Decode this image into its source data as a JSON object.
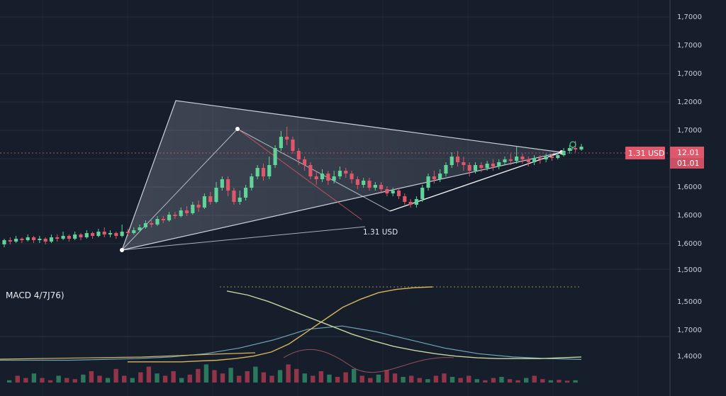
{
  "chart_data": {
    "type": "candlestick",
    "grid": true,
    "colors": {
      "background": "#161d2b",
      "up": "#5fd39a",
      "down": "#e0566a",
      "pattern_fill": "#cfd5df",
      "pattern_line": "#e9edf3",
      "price_line": "#e0566a",
      "macd_line": "#d8b45c",
      "signal_line": "#6fa6b8",
      "third_line": "#c9d4a0",
      "accent_green": "#3fcf8e"
    },
    "price_axis": {
      "labels": [
        "1,7000",
        "1,7000",
        "1,7000",
        "1,2000",
        "1,7000",
        "1,6000",
        "1,6000",
        "1,6000",
        "1,5000"
      ],
      "tag_left": "1.31 USD",
      "tag_right_top": "12.01",
      "tag_right_bottom": "01.01"
    },
    "annotation_label": "1.31 USD",
    "candles": [
      [
        0.1,
        0.13,
        0.08,
        0.14
      ],
      [
        0.13,
        0.12,
        0.1,
        0.15
      ],
      [
        0.12,
        0.14,
        0.11,
        0.16
      ],
      [
        0.14,
        0.13,
        0.11,
        0.15
      ],
      [
        0.13,
        0.15,
        0.12,
        0.17
      ],
      [
        0.15,
        0.13,
        0.11,
        0.16
      ],
      [
        0.13,
        0.14,
        0.11,
        0.16
      ],
      [
        0.14,
        0.12,
        0.1,
        0.15
      ],
      [
        0.12,
        0.15,
        0.11,
        0.17
      ],
      [
        0.15,
        0.14,
        0.12,
        0.17
      ],
      [
        0.14,
        0.16,
        0.13,
        0.19
      ],
      [
        0.16,
        0.14,
        0.12,
        0.17
      ],
      [
        0.14,
        0.17,
        0.13,
        0.19
      ],
      [
        0.17,
        0.15,
        0.13,
        0.18
      ],
      [
        0.15,
        0.18,
        0.14,
        0.2
      ],
      [
        0.18,
        0.16,
        0.14,
        0.19
      ],
      [
        0.16,
        0.19,
        0.15,
        0.21
      ],
      [
        0.19,
        0.17,
        0.15,
        0.22
      ],
      [
        0.17,
        0.18,
        0.15,
        0.2
      ],
      [
        0.18,
        0.16,
        0.14,
        0.19
      ],
      [
        0.16,
        0.19,
        0.15,
        0.24
      ],
      [
        0.19,
        0.18,
        0.16,
        0.21
      ],
      [
        0.18,
        0.2,
        0.17,
        0.22
      ],
      [
        0.2,
        0.22,
        0.19,
        0.24
      ],
      [
        0.22,
        0.25,
        0.21,
        0.27
      ],
      [
        0.25,
        0.24,
        0.22,
        0.27
      ],
      [
        0.24,
        0.28,
        0.23,
        0.3
      ],
      [
        0.28,
        0.27,
        0.25,
        0.3
      ],
      [
        0.27,
        0.31,
        0.26,
        0.33
      ],
      [
        0.31,
        0.3,
        0.28,
        0.33
      ],
      [
        0.3,
        0.34,
        0.29,
        0.36
      ],
      [
        0.34,
        0.32,
        0.3,
        0.37
      ],
      [
        0.32,
        0.38,
        0.31,
        0.4
      ],
      [
        0.38,
        0.36,
        0.33,
        0.41
      ],
      [
        0.36,
        0.44,
        0.35,
        0.46
      ],
      [
        0.44,
        0.4,
        0.38,
        0.47
      ],
      [
        0.4,
        0.5,
        0.39,
        0.54
      ],
      [
        0.5,
        0.56,
        0.48,
        0.58
      ],
      [
        0.56,
        0.48,
        0.44,
        0.58
      ],
      [
        0.48,
        0.4,
        0.38,
        0.5
      ],
      [
        0.4,
        0.43,
        0.38,
        0.48
      ],
      [
        0.43,
        0.5,
        0.41,
        0.52
      ],
      [
        0.5,
        0.58,
        0.48,
        0.6
      ],
      [
        0.58,
        0.64,
        0.56,
        0.66
      ],
      [
        0.64,
        0.58,
        0.55,
        0.67
      ],
      [
        0.58,
        0.66,
        0.56,
        0.72
      ],
      [
        0.66,
        0.78,
        0.64,
        0.8
      ],
      [
        0.78,
        0.86,
        0.76,
        0.9
      ],
      [
        0.86,
        0.84,
        0.8,
        0.93
      ],
      [
        0.84,
        0.76,
        0.74,
        0.86
      ],
      [
        0.76,
        0.7,
        0.66,
        0.78
      ],
      [
        0.7,
        0.66,
        0.62,
        0.72
      ],
      [
        0.66,
        0.58,
        0.56,
        0.68
      ],
      [
        0.58,
        0.56,
        0.52,
        0.62
      ],
      [
        0.56,
        0.6,
        0.54,
        0.63
      ],
      [
        0.6,
        0.55,
        0.52,
        0.62
      ],
      [
        0.55,
        0.58,
        0.53,
        0.62
      ],
      [
        0.58,
        0.62,
        0.56,
        0.65
      ],
      [
        0.62,
        0.6,
        0.57,
        0.64
      ],
      [
        0.6,
        0.56,
        0.53,
        0.62
      ],
      [
        0.56,
        0.52,
        0.49,
        0.58
      ],
      [
        0.52,
        0.55,
        0.5,
        0.57
      ],
      [
        0.55,
        0.5,
        0.48,
        0.57
      ],
      [
        0.5,
        0.52,
        0.48,
        0.54
      ],
      [
        0.52,
        0.49,
        0.46,
        0.54
      ],
      [
        0.49,
        0.46,
        0.44,
        0.51
      ],
      [
        0.46,
        0.48,
        0.44,
        0.5
      ],
      [
        0.48,
        0.44,
        0.42,
        0.5
      ],
      [
        0.44,
        0.4,
        0.38,
        0.46
      ],
      [
        0.4,
        0.38,
        0.36,
        0.42
      ],
      [
        0.38,
        0.42,
        0.36,
        0.44
      ],
      [
        0.42,
        0.5,
        0.4,
        0.52
      ],
      [
        0.5,
        0.58,
        0.48,
        0.6
      ],
      [
        0.58,
        0.56,
        0.53,
        0.62
      ],
      [
        0.56,
        0.6,
        0.54,
        0.63
      ],
      [
        0.6,
        0.66,
        0.58,
        0.68
      ],
      [
        0.66,
        0.72,
        0.64,
        0.75
      ],
      [
        0.72,
        0.68,
        0.65,
        0.76
      ],
      [
        0.68,
        0.66,
        0.62,
        0.72
      ],
      [
        0.66,
        0.62,
        0.58,
        0.68
      ],
      [
        0.62,
        0.66,
        0.6,
        0.68
      ],
      [
        0.66,
        0.64,
        0.61,
        0.68
      ],
      [
        0.64,
        0.67,
        0.62,
        0.69
      ],
      [
        0.67,
        0.65,
        0.62,
        0.7
      ],
      [
        0.65,
        0.68,
        0.63,
        0.7
      ],
      [
        0.68,
        0.7,
        0.66,
        0.72
      ],
      [
        0.7,
        0.69,
        0.66,
        0.74
      ],
      [
        0.69,
        0.72,
        0.67,
        0.79
      ],
      [
        0.72,
        0.7,
        0.67,
        0.74
      ],
      [
        0.7,
        0.68,
        0.65,
        0.72
      ],
      [
        0.68,
        0.71,
        0.66,
        0.73
      ],
      [
        0.71,
        0.7,
        0.67,
        0.73
      ],
      [
        0.7,
        0.72,
        0.68,
        0.74
      ],
      [
        0.72,
        0.71,
        0.69,
        0.74
      ],
      [
        0.71,
        0.73,
        0.7,
        0.75
      ],
      [
        0.73,
        0.76,
        0.72,
        0.78
      ],
      [
        0.76,
        0.78,
        0.74,
        0.8
      ],
      [
        0.78,
        0.77,
        0.75,
        0.83
      ],
      [
        0.77,
        0.79,
        0.76,
        0.81
      ]
    ],
    "price_range": [
      0.0,
      1.0
    ],
    "pattern": {
      "triangle": [
        [
          248,
          142
        ],
        [
          172,
          353
        ],
        [
          792,
          215
        ]
      ],
      "inner_lines": [
        [
          [
            172,
            353
          ],
          [
            335,
            182
          ]
        ],
        [
          [
            335,
            182
          ],
          [
            550,
            298
          ]
        ],
        [
          [
            550,
            298
          ],
          [
            792,
            215
          ]
        ],
        [
          [
            172,
            353
          ],
          [
            515,
            320
          ]
        ]
      ]
    },
    "macd_panel": {
      "title": "MACD 4/7J76)",
      "macd_line": [
        0.08,
        0.08,
        0.08,
        0.08,
        0.09,
        0.1,
        0.12,
        0.15,
        0.2,
        0.3,
        0.45,
        0.6,
        0.75,
        0.85,
        0.93,
        0.97,
        0.99,
        1.0
      ],
      "signal_line": [
        0.1,
        0.1,
        0.1,
        0.11,
        0.12,
        0.14,
        0.18,
        0.25,
        0.35,
        0.48,
        0.52,
        0.45,
        0.35,
        0.25,
        0.18,
        0.14,
        0.12,
        0.11
      ],
      "slow_line": [
        0.95,
        0.9,
        0.82,
        0.72,
        0.62,
        0.52,
        0.42,
        0.34,
        0.27,
        0.22,
        0.18,
        0.15,
        0.13,
        0.12,
        0.12,
        0.12,
        0.13,
        0.14
      ],
      "histogram": [
        0.1,
        0.3,
        0.2,
        0.4,
        0.2,
        0.1,
        0.3,
        0.2,
        0.15,
        0.35,
        0.5,
        0.3,
        0.2,
        0.6,
        0.3,
        0.2,
        0.45,
        0.7,
        0.4,
        0.3,
        0.5,
        0.2,
        0.35,
        0.6,
        0.8,
        0.55,
        0.4,
        0.65,
        0.3,
        0.5,
        0.7,
        0.45,
        0.3,
        0.55,
        0.8,
        0.6,
        0.4,
        0.3,
        0.5,
        0.35,
        0.25,
        0.45,
        0.6,
        0.3,
        0.2,
        0.35,
        0.55,
        0.4,
        0.25,
        0.3,
        0.2,
        0.15,
        0.3,
        0.4,
        0.25,
        0.2,
        0.3,
        0.15,
        0.1,
        0.2,
        0.25,
        0.15,
        0.1,
        0.2,
        0.3,
        0.15,
        0.1,
        0.12,
        0.08,
        0.1
      ],
      "axis_labels": [
        "1,5000",
        "1,7000",
        "1,4000"
      ]
    }
  }
}
